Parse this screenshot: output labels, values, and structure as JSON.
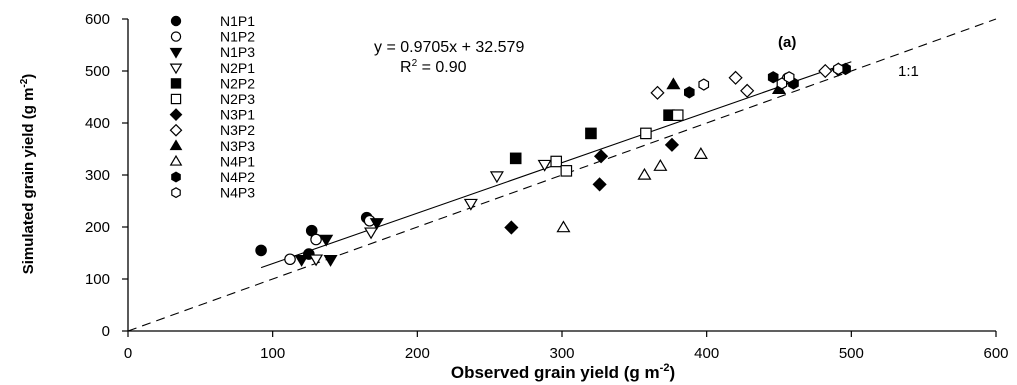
{
  "chart_data": {
    "type": "scatter",
    "panel_label": "(a)",
    "xlabel": "Observed grain yield (g m",
    "xlabel_sup": "-2",
    "xlabel_end": ")",
    "ylabel": "Simulated grain yield (g m",
    "ylabel_sup": "-2",
    "ylabel_end": ")",
    "xlim": [
      0,
      600
    ],
    "ylim": [
      0,
      600
    ],
    "xticks": [
      "0",
      "100",
      "200",
      "300",
      "400",
      "500",
      "600"
    ],
    "yticks": [
      "0",
      "100",
      "200",
      "300",
      "400",
      "500",
      "600"
    ],
    "grid": false,
    "legend_position": "top-left",
    "equation": "y = 0.9705x + 32.579",
    "r2_prefix": "R",
    "r2_sup": "2",
    "r2_value": " = 0.90",
    "one_to_one_label": "1:1",
    "regression": {
      "slope": 0.9705,
      "intercept": 32.579,
      "x_range": [
        92,
        500
      ]
    },
    "series": [
      {
        "name": "N1P1",
        "marker": "circle",
        "filled": true,
        "points": [
          [
            92,
            155
          ],
          [
            127,
            193
          ],
          [
            165,
            218
          ],
          [
            125,
            148
          ]
        ]
      },
      {
        "name": "N1P2",
        "marker": "circle",
        "filled": false,
        "points": [
          [
            112,
            138
          ],
          [
            130,
            176
          ],
          [
            167,
            212
          ],
          [
            456,
            486
          ]
        ]
      },
      {
        "name": "N1P3",
        "marker": "triangle-down",
        "filled": true,
        "points": [
          [
            120,
            137
          ],
          [
            137,
            176
          ],
          [
            140,
            137
          ],
          [
            172,
            208
          ]
        ]
      },
      {
        "name": "N2P1",
        "marker": "triangle-down",
        "filled": false,
        "points": [
          [
            130,
            138
          ],
          [
            168,
            190
          ],
          [
            237,
            245
          ],
          [
            255,
            298
          ],
          [
            288,
            320
          ]
        ]
      },
      {
        "name": "N2P2",
        "marker": "square",
        "filled": true,
        "points": [
          [
            268,
            332
          ],
          [
            320,
            380
          ],
          [
            374,
            415
          ]
        ]
      },
      {
        "name": "N2P3",
        "marker": "square",
        "filled": false,
        "points": [
          [
            296,
            326
          ],
          [
            303,
            308
          ],
          [
            358,
            380
          ],
          [
            380,
            415
          ]
        ]
      },
      {
        "name": "N3P1",
        "marker": "diamond",
        "filled": true,
        "points": [
          [
            265,
            199
          ],
          [
            326,
            282
          ],
          [
            327,
            336
          ],
          [
            376,
            358
          ]
        ]
      },
      {
        "name": "N3P2",
        "marker": "diamond",
        "filled": false,
        "points": [
          [
            366,
            458
          ],
          [
            420,
            487
          ],
          [
            428,
            462
          ],
          [
            482,
            500
          ],
          [
            491,
            503
          ]
        ]
      },
      {
        "name": "N3P3",
        "marker": "triangle-up",
        "filled": true,
        "points": [
          [
            377,
            474
          ],
          [
            450,
            465
          ]
        ]
      },
      {
        "name": "N4P1",
        "marker": "triangle-up",
        "filled": false,
        "points": [
          [
            301,
            199
          ],
          [
            357,
            300
          ],
          [
            368,
            317
          ],
          [
            396,
            340
          ]
        ]
      },
      {
        "name": "N4P2",
        "marker": "hexagon",
        "filled": true,
        "points": [
          [
            388,
            459
          ],
          [
            446,
            488
          ],
          [
            460,
            476
          ],
          [
            496,
            504
          ]
        ]
      },
      {
        "name": "N4P3",
        "marker": "hexagon",
        "filled": false,
        "points": [
          [
            398,
            474
          ],
          [
            452,
            476
          ],
          [
            457,
            488
          ],
          [
            491,
            504
          ]
        ]
      }
    ]
  }
}
